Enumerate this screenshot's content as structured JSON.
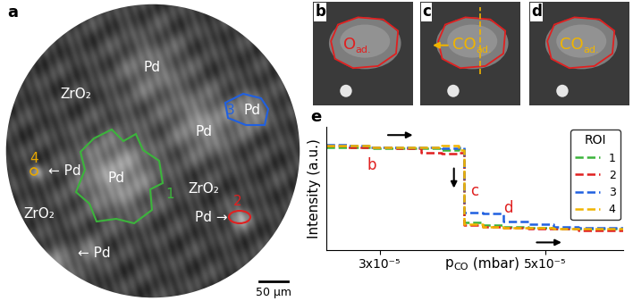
{
  "panels": {
    "a": {
      "label": "a",
      "texts": [
        "Pd",
        "ZrO₂",
        "Pd",
        "Pd",
        "← Pd",
        "Pd",
        "ZrO₂",
        "Pd →",
        "ZrO₂",
        "← Pd"
      ],
      "regions": [
        {
          "name": "1",
          "color": "#3cb43c"
        },
        {
          "name": "2",
          "color": "#e02020"
        },
        {
          "name": "3",
          "color": "#2060e0"
        },
        {
          "name": "4",
          "color": "#e8a800"
        }
      ],
      "scale_bar": "50 µm"
    },
    "b": {
      "label": "b",
      "adsorbate": {
        "text": "O",
        "sub": "ad."
      },
      "color": "#e02020"
    },
    "c": {
      "label": "c",
      "adsorbate": {
        "text": "CO",
        "sub": "ad."
      },
      "color": "#f0b400"
    },
    "d": {
      "label": "d",
      "adsorbate": {
        "text": "CO",
        "sub": "ad."
      },
      "color": "#f0b400"
    }
  },
  "chart_data": {
    "type": "line",
    "label": "e",
    "x": [
      2.35e-05,
      2.6e-05,
      2.9e-05,
      3.2e-05,
      3.5e-05,
      3.75e-05,
      3.95e-05,
      4.02e-05,
      4.25e-05,
      4.5e-05,
      4.8e-05,
      5.1e-05,
      5.4e-05,
      5.95e-05
    ],
    "series": [
      {
        "name": "1",
        "color": "#3cb43c",
        "values": [
          0.84,
          0.84,
          0.83,
          0.83,
          0.83,
          0.82,
          0.83,
          0.26,
          0.24,
          0.23,
          0.22,
          0.21,
          0.21,
          0.21
        ]
      },
      {
        "name": "2",
        "color": "#e02020",
        "values": [
          0.85,
          0.84,
          0.84,
          0.83,
          0.8,
          0.79,
          0.8,
          0.24,
          0.23,
          0.22,
          0.21,
          0.21,
          0.2,
          0.2
        ]
      },
      {
        "name": "3",
        "color": "#2060e0",
        "values": [
          0.86,
          0.85,
          0.84,
          0.84,
          0.84,
          0.83,
          0.84,
          0.34,
          0.33,
          0.27,
          0.25,
          0.23,
          0.22,
          0.22
        ]
      },
      {
        "name": "4",
        "color": "#f0b400",
        "values": [
          0.85,
          0.85,
          0.84,
          0.84,
          0.84,
          0.85,
          0.82,
          0.25,
          0.23,
          0.22,
          0.22,
          0.21,
          0.21,
          0.21
        ]
      }
    ],
    "line_style": "dashed",
    "xlim": [
      2.35e-05,
      5.95e-05
    ],
    "xticks": [
      {
        "value": 3e-05,
        "label": "3x10⁻⁵"
      },
      {
        "value": 5e-05,
        "label": "5x10⁻⁵"
      }
    ],
    "ylim": [
      0.05,
      1.0
    ],
    "yticks": [],
    "tick_labels": "x",
    "ylabel": "Intensity (a.u.)",
    "xlabel": {
      "text": "p",
      "sub": "CO",
      "suffix": " (mbar)"
    },
    "legend": "upper right",
    "legend_title": "ROI",
    "annotations": [
      {
        "text": "b",
        "x": 2.9e-05,
        "y": 0.7,
        "color": "#e02020"
      },
      {
        "text": "c",
        "x": 4.15e-05,
        "y": 0.5,
        "color": "#e02020"
      },
      {
        "text": "d",
        "x": 4.55e-05,
        "y": 0.37,
        "color": "#e02020"
      }
    ]
  }
}
